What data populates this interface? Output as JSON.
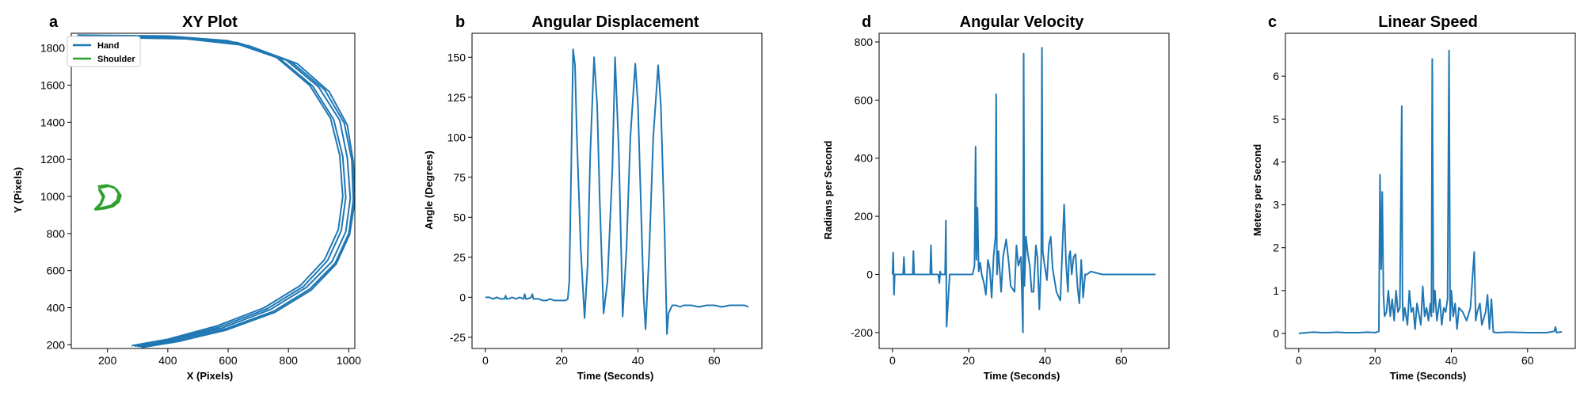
{
  "panels": [
    {
      "letter": "a",
      "title": "XY Plot",
      "xlabel": "X (Pixels)",
      "ylabel": "Y (Pixels)"
    },
    {
      "letter": "b",
      "title": "Angular Displacement",
      "xlabel": "Time (Seconds)",
      "ylabel": "Angle (Degrees)"
    },
    {
      "letter": "d",
      "title": "Angular Velocity",
      "xlabel": "Time (Seconds)",
      "ylabel": "Radians per Second"
    },
    {
      "letter": "c",
      "title": "Linear Speed",
      "xlabel": "Time (Seconds)",
      "ylabel": "Meters per Second"
    }
  ],
  "chart_data": [
    {
      "type": "line",
      "title": "XY Plot",
      "xlabel": "X (Pixels)",
      "ylabel": "Y (Pixels)",
      "xlim": [
        80,
        1020
      ],
      "ylim": [
        180,
        1880
      ],
      "xticks": [
        200,
        400,
        600,
        800,
        1000
      ],
      "yticks": [
        200,
        400,
        600,
        800,
        1000,
        1200,
        1400,
        1600,
        1800
      ],
      "grid": false,
      "legend": "top-left",
      "series": [
        {
          "name": "Hand",
          "color": "#1f77b4",
          "loops": [
            {
              "x": [
                100,
                400,
                600,
                760,
                870,
                940,
                970,
                980,
                965,
                920,
                840,
                720,
                560,
                400,
                280
              ],
              "y": [
                1870,
                1865,
                1840,
                1750,
                1600,
                1420,
                1220,
                1000,
                820,
                660,
                520,
                400,
                300,
                230,
                195
              ]
            },
            {
              "x": [
                120,
                420,
                630,
                790,
                900,
                970,
                995,
                1005,
                990,
                945,
                860,
                740,
                580,
                420,
                300
              ],
              "y": [
                1865,
                1860,
                1830,
                1740,
                1590,
                1410,
                1210,
                990,
                810,
                650,
                510,
                390,
                290,
                225,
                190
              ]
            },
            {
              "x": [
                140,
                440,
                650,
                810,
                920,
                985,
                1010,
                1015,
                1000,
                955,
                870,
                750,
                590,
                430,
                310
              ],
              "y": [
                1862,
                1855,
                1820,
                1725,
                1575,
                1395,
                1195,
                980,
                800,
                640,
                500,
                380,
                285,
                220,
                188
              ]
            },
            {
              "x": [
                110,
                410,
                610,
                770,
                880,
                950,
                980,
                990,
                975,
                930,
                850,
                730,
                570,
                410,
                290
              ],
              "y": [
                1868,
                1862,
                1835,
                1745,
                1595,
                1415,
                1215,
                995,
                815,
                655,
                515,
                395,
                295,
                228,
                192
              ]
            },
            {
              "x": [
                160,
                460,
                670,
                830,
                935,
                995,
                1015,
                1020,
                1003,
                958,
                875,
                755,
                595,
                435,
                315
              ],
              "y": [
                1858,
                1850,
                1812,
                1715,
                1565,
                1385,
                1185,
                975,
                795,
                635,
                495,
                375,
                280,
                218,
                186
              ]
            }
          ]
        },
        {
          "name": "Shoulder",
          "color": "#2ca02c",
          "loops": [
            {
              "x": [
                170,
                200,
                225,
                240,
                235,
                215,
                190,
                165,
                180,
                190,
                175
              ],
              "y": [
                1050,
                1060,
                1045,
                1010,
                975,
                950,
                940,
                935,
                960,
                1000,
                1040
              ]
            },
            {
              "x": [
                175,
                205,
                230,
                245,
                238,
                218,
                195,
                160,
                178,
                185,
                172
              ],
              "y": [
                1045,
                1055,
                1040,
                1005,
                970,
                945,
                935,
                928,
                955,
                995,
                1035
              ]
            },
            {
              "x": [
                168,
                198,
                222,
                236,
                232,
                212,
                188,
                158,
                176,
                186,
                170
              ],
              "y": [
                1055,
                1062,
                1050,
                1015,
                980,
                952,
                942,
                932,
                962,
                1002,
                1045
              ]
            }
          ]
        }
      ]
    },
    {
      "type": "line",
      "title": "Angular Displacement",
      "xlabel": "Time (Seconds)",
      "ylabel": "Angle (Degrees)",
      "xlim": [
        -3.5,
        72.5
      ],
      "ylim": [
        -32,
        165
      ],
      "xticks": [
        0,
        20,
        40,
        60
      ],
      "yticks": [
        -25,
        0,
        25,
        50,
        75,
        100,
        125,
        150
      ],
      "grid": false,
      "series": [
        {
          "color": "#1f77b4",
          "x": [
            0,
            1,
            2,
            3,
            4,
            5,
            5.3,
            5.6,
            6,
            7,
            8,
            9,
            10,
            10.3,
            10.6,
            11,
            12,
            12.3,
            12.6,
            13,
            14,
            15,
            16,
            17,
            18,
            19,
            20,
            21,
            21.6,
            22,
            22.5,
            23,
            23.5,
            24,
            25,
            26,
            26.8,
            27.5,
            28.5,
            29.3,
            30,
            31,
            32,
            33.3,
            34,
            35,
            35.5,
            36,
            37,
            38,
            39.3,
            40,
            41,
            41.5,
            42,
            43,
            44,
            45.3,
            46,
            47,
            47.6,
            48,
            49,
            50,
            51,
            52,
            54,
            56,
            58,
            60,
            62,
            64,
            66,
            68,
            69
          ],
          "y": [
            0,
            0,
            -1,
            0,
            -1,
            -1,
            1,
            -1,
            -1,
            0,
            -1,
            0,
            -1,
            2,
            -1,
            -1,
            0,
            2,
            -1,
            -1,
            -1,
            -2,
            -2,
            -1,
            -2,
            -2,
            -2,
            -2,
            -1,
            10,
            80,
            155,
            145,
            100,
            30,
            -13,
            20,
            90,
            150,
            120,
            60,
            -10,
            10,
            80,
            150,
            90,
            40,
            -12,
            30,
            100,
            146,
            120,
            40,
            0,
            -20,
            30,
            100,
            145,
            120,
            40,
            -23,
            -10,
            -5,
            -5,
            -6,
            -5,
            -5,
            -6,
            -5,
            -5,
            -6,
            -5,
            -5,
            -5,
            -6
          ]
        }
      ]
    },
    {
      "type": "line",
      "title": "Angular Velocity",
      "xlabel": "Time (Seconds)",
      "ylabel": "Radians per Second",
      "xlim": [
        -3.5,
        72.5
      ],
      "ylim": [
        -255,
        830
      ],
      "xticks": [
        0,
        20,
        40,
        60
      ],
      "yticks": [
        -200,
        0,
        200,
        400,
        600,
        800
      ],
      "grid": false,
      "series": [
        {
          "color": "#1f77b4",
          "x": [
            0,
            0.2,
            0.4,
            0.6,
            1,
            2,
            2.8,
            3,
            3.2,
            4,
            5.3,
            5.5,
            5.7,
            6,
            8,
            9.9,
            10.1,
            10.3,
            11,
            12,
            12.3,
            12.5,
            12.7,
            13,
            13.8,
            14,
            14.2,
            15,
            18,
            21,
            21.5,
            21.8,
            22,
            22.3,
            22.6,
            23,
            23.4,
            24,
            24.5,
            25,
            25.5,
            26,
            26.5,
            27,
            27.2,
            27.4,
            27.8,
            28.5,
            29,
            29.8,
            30.5,
            31,
            32,
            32.5,
            33,
            33.7,
            34.2,
            34.4,
            34.6,
            35,
            35.5,
            36,
            36.5,
            37,
            37.6,
            38,
            38.5,
            39,
            39.2,
            39.4,
            39.8,
            40.5,
            41,
            41.5,
            42,
            43,
            44,
            45,
            45.5,
            46,
            46.3,
            46.6,
            47,
            47.5,
            48,
            48.5,
            49,
            49.5,
            50,
            50.5,
            51,
            52,
            55,
            60,
            65,
            69
          ],
          "y": [
            0,
            75,
            -70,
            0,
            0,
            0,
            0,
            60,
            0,
            0,
            0,
            80,
            0,
            0,
            0,
            0,
            100,
            0,
            0,
            0,
            -30,
            10,
            0,
            0,
            0,
            185,
            -180,
            0,
            0,
            0,
            30,
            440,
            50,
            230,
            10,
            40,
            0,
            -30,
            -70,
            50,
            20,
            -80,
            60,
            130,
            620,
            0,
            80,
            -60,
            60,
            120,
            40,
            -40,
            -60,
            100,
            30,
            60,
            -200,
            760,
            -40,
            130,
            70,
            30,
            -60,
            -60,
            100,
            60,
            -120,
            60,
            780,
            80,
            40,
            -20,
            100,
            130,
            20,
            -60,
            -90,
            240,
            40,
            -60,
            60,
            80,
            0,
            60,
            70,
            -40,
            -100,
            50,
            -80,
            0,
            0,
            10,
            0,
            0,
            0,
            0
          ]
        }
      ]
    },
    {
      "type": "line",
      "title": "Linear Speed",
      "xlabel": "Time (Seconds)",
      "ylabel": "Meters per Second",
      "xlim": [
        -3.5,
        72.5
      ],
      "ylim": [
        -0.35,
        7.0
      ],
      "xticks": [
        0,
        20,
        40,
        60
      ],
      "yticks": [
        0,
        1,
        2,
        3,
        4,
        5,
        6
      ],
      "grid": false,
      "series": [
        {
          "color": "#1f77b4",
          "x": [
            0,
            2,
            4,
            6,
            8,
            10,
            12,
            14,
            16,
            18,
            20,
            21,
            21.3,
            21.6,
            21.9,
            22.2,
            22.5,
            23,
            23.5,
            24,
            24.5,
            25,
            25.5,
            26,
            26.5,
            27,
            27.2,
            27.4,
            27.8,
            28.5,
            29,
            29.5,
            30,
            30.5,
            31,
            32,
            32.5,
            33,
            33.5,
            34,
            34.5,
            34.8,
            35,
            35.3,
            35.7,
            36.2,
            37,
            37.5,
            38,
            38.5,
            39,
            39.4,
            39.7,
            40,
            40.5,
            41,
            41.5,
            42,
            43,
            44,
            45,
            46,
            46.4,
            46.8,
            47.5,
            48,
            49,
            49.5,
            50,
            50.5,
            51,
            52,
            55,
            60,
            65,
            67,
            67.3,
            67.6,
            69
          ],
          "y": [
            0,
            0.02,
            0.03,
            0.02,
            0.02,
            0.03,
            0.02,
            0.02,
            0.02,
            0.03,
            0.02,
            0.05,
            3.7,
            1.5,
            3.3,
            0.9,
            0.4,
            0.5,
            1.0,
            0.4,
            0.8,
            0.3,
            1.0,
            0.5,
            0.6,
            5.3,
            0.8,
            0.3,
            0.6,
            0.2,
            1.0,
            0.5,
            0.6,
            0.1,
            0.7,
            0.2,
            1.1,
            0.4,
            0.6,
            0.3,
            0.7,
            0.4,
            6.4,
            0.5,
            1.0,
            0.3,
            0.8,
            0.2,
            0.6,
            0.5,
            0.8,
            6.6,
            0.3,
            1.0,
            0.4,
            0.7,
            0.1,
            0.6,
            0.5,
            0.3,
            0.6,
            1.9,
            0.3,
            0.5,
            0.7,
            0.2,
            0.5,
            0.9,
            0.1,
            0.8,
            0.03,
            0.02,
            0.03,
            0.02,
            0.02,
            0.05,
            0.15,
            0.02,
            0.04
          ]
        }
      ]
    }
  ]
}
